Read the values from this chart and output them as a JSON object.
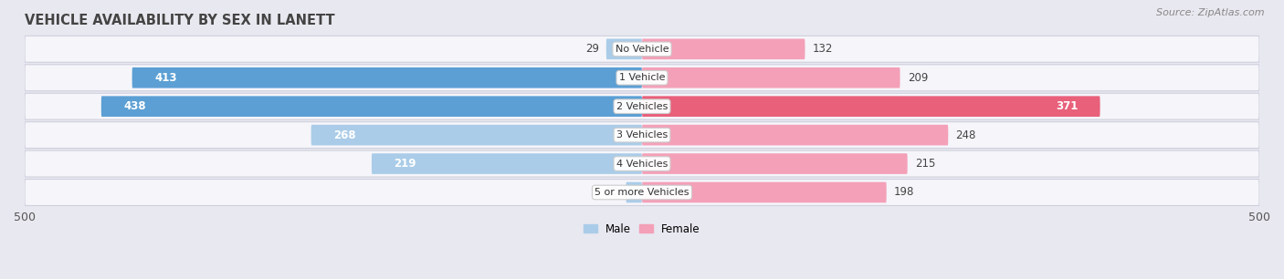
{
  "title": "VEHICLE AVAILABILITY BY SEX IN LANETT",
  "source": "Source: ZipAtlas.com",
  "categories": [
    "No Vehicle",
    "1 Vehicle",
    "2 Vehicles",
    "3 Vehicles",
    "4 Vehicles",
    "5 or more Vehicles"
  ],
  "male_values": [
    29,
    413,
    438,
    268,
    219,
    13
  ],
  "female_values": [
    132,
    209,
    371,
    248,
    215,
    198
  ],
  "male_color_light": "#aacce8",
  "male_color_dark": "#5b9fd4",
  "female_color_light": "#f4a0b8",
  "female_color_dark": "#e8607a",
  "bar_height": 0.72,
  "xlim": [
    -500,
    500
  ],
  "xticks": [
    -500,
    500
  ],
  "background_color": "#e8e8f0",
  "row_bg": "#f5f5fa",
  "row_border": "#d0d0de",
  "title_fontsize": 10.5,
  "label_fontsize": 8.5,
  "axis_fontsize": 9,
  "source_fontsize": 8
}
